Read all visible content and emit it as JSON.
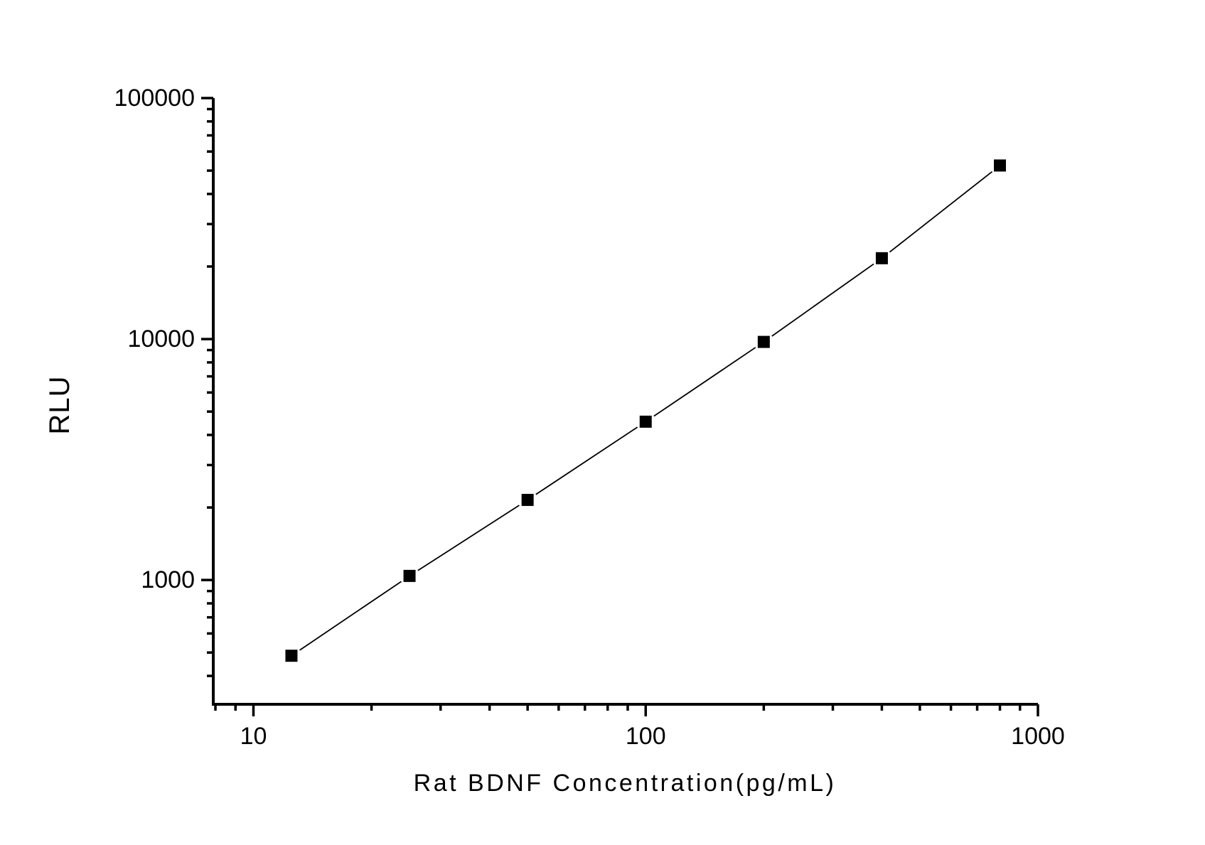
{
  "page": {
    "background": "#ffffff"
  },
  "chart_data": {
    "type": "line",
    "title": "",
    "xlabel": "Rat BDNF Concentration(pg/mL)",
    "ylabel": "RLU",
    "x_scale": "log",
    "y_scale": "log",
    "xlim": [
      7.9,
      1000
    ],
    "ylim": [
      305,
      100000
    ],
    "x_major_ticks": [
      10,
      100,
      1000
    ],
    "x_minor_ticks": [
      8,
      9,
      20,
      30,
      40,
      50,
      60,
      70,
      80,
      90,
      200,
      300,
      400,
      500,
      600,
      700,
      800,
      900
    ],
    "y_major_ticks": [
      1000,
      10000,
      100000
    ],
    "y_minor_ticks": [
      400,
      500,
      600,
      700,
      800,
      900,
      2000,
      3000,
      4000,
      5000,
      6000,
      7000,
      8000,
      9000,
      20000,
      30000,
      40000,
      50000,
      60000,
      70000,
      80000,
      90000
    ],
    "grid": false,
    "legend": "none",
    "marker": "filled-square",
    "marker_size": 17,
    "series": [
      {
        "x": [
          12.5,
          25,
          50,
          100,
          200,
          400,
          800
        ],
        "y": [
          485,
          1040,
          2150,
          4540,
          9730,
          21650,
          52500
        ]
      }
    ],
    "colors": {
      "axis": "#000000",
      "line": "#000000",
      "marker": "#000000",
      "text": "#000000",
      "background": "#ffffff"
    }
  }
}
